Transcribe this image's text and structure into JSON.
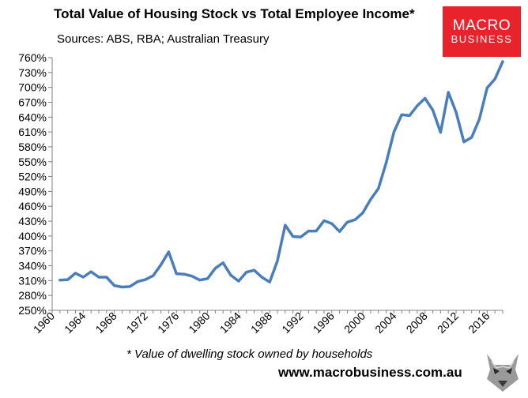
{
  "header": {
    "title": "Total Value of Housing Stock vs Total Employee Income*",
    "sources": "Sources: ABS, RBA; Australian Treasury"
  },
  "logo": {
    "line1": "MACRO",
    "line2": "BUSINESS",
    "color": "#e8232c"
  },
  "footer": {
    "footnote": "* Value of dwelling stock owned by households",
    "website": "www.macrobusiness.com.au"
  },
  "chart_data": {
    "type": "line",
    "title": "Total Value of Housing Stock vs Total Employee Income*",
    "subtitle": "Sources: ABS, RBA; Australian Treasury",
    "xlabel": "",
    "ylabel": "",
    "ylim": [
      250,
      760
    ],
    "y_ticks": [
      "250%",
      "280%",
      "310%",
      "340%",
      "370%",
      "400%",
      "430%",
      "460%",
      "490%",
      "520%",
      "550%",
      "580%",
      "610%",
      "640%",
      "670%",
      "700%",
      "730%",
      "760%"
    ],
    "x_ticks": [
      "1960",
      "1964",
      "1968",
      "1972",
      "1976",
      "1980",
      "1984",
      "1988",
      "1992",
      "1996",
      "2000",
      "2004",
      "2008",
      "2012",
      "2016"
    ],
    "xlim": [
      1960,
      2018
    ],
    "grid": false,
    "line_color": "#4a7ebb",
    "series": [
      {
        "x": [
          1961,
          1962,
          1963,
          1964,
          1965,
          1966,
          1967,
          1968,
          1969,
          1970,
          1971,
          1972,
          1973,
          1974,
          1975,
          1976,
          1977,
          1978,
          1979,
          1980,
          1981,
          1982,
          1983,
          1984,
          1985,
          1986,
          1987,
          1988,
          1989,
          1990,
          1991,
          1992,
          1993,
          1994,
          1995,
          1996,
          1997,
          1998,
          1999,
          2000,
          2001,
          2002,
          2003,
          2004,
          2005,
          2006,
          2007,
          2008,
          2009,
          2010,
          2011,
          2012,
          2013,
          2014,
          2015,
          2016,
          2017,
          2018
        ],
        "values": [
          311,
          312,
          325,
          317,
          328,
          317,
          317,
          300,
          297,
          298,
          308,
          312,
          320,
          342,
          368,
          324,
          323,
          319,
          311,
          314,
          335,
          346,
          321,
          309,
          327,
          331,
          317,
          307,
          350,
          422,
          399,
          398,
          410,
          410,
          431,
          425,
          409,
          428,
          433,
          447,
          474,
          496,
          548,
          610,
          645,
          643,
          663,
          678,
          654,
          609,
          690,
          650,
          590,
          599,
          636,
          699,
          717,
          752
        ]
      }
    ]
  }
}
